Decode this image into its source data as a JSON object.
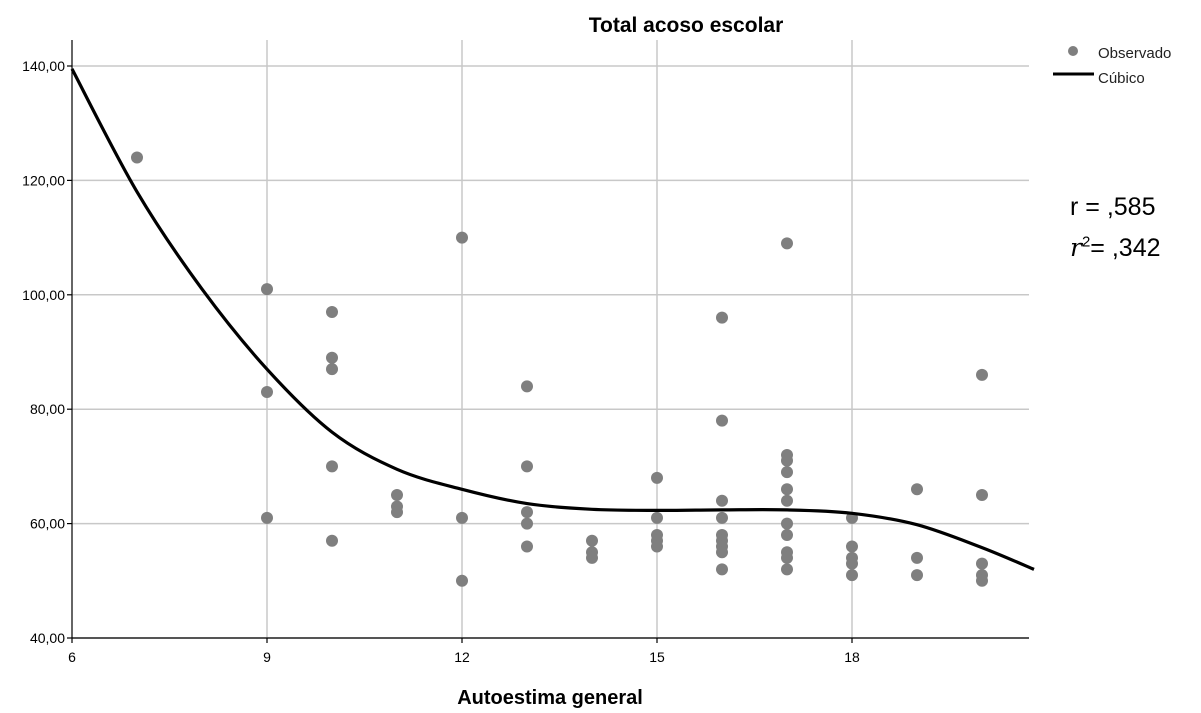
{
  "chart_data": {
    "type": "scatter",
    "title": "Total acoso escolar",
    "xlabel": "Autoestima general",
    "ylabel": "",
    "xlim": [
      6,
      20.8
    ],
    "ylim": [
      40,
      145
    ],
    "xticks": [
      6,
      9,
      12,
      15,
      18
    ],
    "xtick_labels": [
      "6",
      "9",
      "12",
      "15",
      "18"
    ],
    "yticks": [
      40,
      60,
      80,
      100,
      120,
      140
    ],
    "ytick_labels": [
      "40,00",
      "60,00",
      "80,00",
      "100,00",
      "120,00",
      "140,00"
    ],
    "grid": true,
    "legend_position": "top-right",
    "series": [
      {
        "name": "Observado",
        "kind": "points",
        "color": "#7f7f7f",
        "points": [
          [
            7,
            124
          ],
          [
            9,
            101
          ],
          [
            9,
            83
          ],
          [
            9,
            61
          ],
          [
            10,
            97
          ],
          [
            10,
            89
          ],
          [
            10,
            87
          ],
          [
            10,
            70
          ],
          [
            10,
            57
          ],
          [
            11,
            65
          ],
          [
            11,
            63
          ],
          [
            11,
            62
          ],
          [
            12,
            110
          ],
          [
            12,
            61
          ],
          [
            12,
            50
          ],
          [
            13,
            84
          ],
          [
            13,
            70
          ],
          [
            13,
            62
          ],
          [
            13,
            60
          ],
          [
            13,
            56
          ],
          [
            14,
            57
          ],
          [
            14,
            55
          ],
          [
            14,
            54
          ],
          [
            15,
            68
          ],
          [
            15,
            61
          ],
          [
            15,
            58
          ],
          [
            15,
            57
          ],
          [
            15,
            56
          ],
          [
            16,
            96
          ],
          [
            16,
            78
          ],
          [
            16,
            64
          ],
          [
            16,
            61
          ],
          [
            16,
            58
          ],
          [
            16,
            57
          ],
          [
            16,
            56
          ],
          [
            16,
            55
          ],
          [
            16,
            52
          ],
          [
            17,
            109
          ],
          [
            17,
            72
          ],
          [
            17,
            71
          ],
          [
            17,
            69
          ],
          [
            17,
            66
          ],
          [
            17,
            64
          ],
          [
            17,
            60
          ],
          [
            17,
            58
          ],
          [
            17,
            55
          ],
          [
            17,
            54
          ],
          [
            17,
            52
          ],
          [
            18,
            61
          ],
          [
            18,
            56
          ],
          [
            18,
            54
          ],
          [
            18,
            53
          ],
          [
            18,
            51
          ],
          [
            19,
            66
          ],
          [
            19,
            54
          ],
          [
            19,
            51
          ],
          [
            20,
            86
          ],
          [
            20,
            65
          ],
          [
            20,
            53
          ],
          [
            20,
            51
          ],
          [
            20,
            50
          ]
        ]
      },
      {
        "name": "Cúbico",
        "kind": "curve",
        "color": "#000000",
        "points": [
          [
            6,
            139.5
          ],
          [
            7,
            118
          ],
          [
            8,
            101
          ],
          [
            9,
            87
          ],
          [
            10,
            76
          ],
          [
            11,
            69.5
          ],
          [
            12,
            66
          ],
          [
            13,
            63.5
          ],
          [
            14,
            62.5
          ],
          [
            15,
            62.3
          ],
          [
            16,
            62.4
          ],
          [
            17,
            62.4
          ],
          [
            18,
            61.8
          ],
          [
            19,
            59.8
          ],
          [
            20,
            55.8
          ],
          [
            20.8,
            52
          ]
        ]
      }
    ]
  },
  "annotations": {
    "r_line": "r = ,585",
    "r2_symbol": "r",
    "r2_exp": "2",
    "r2_value": "= ,342"
  }
}
